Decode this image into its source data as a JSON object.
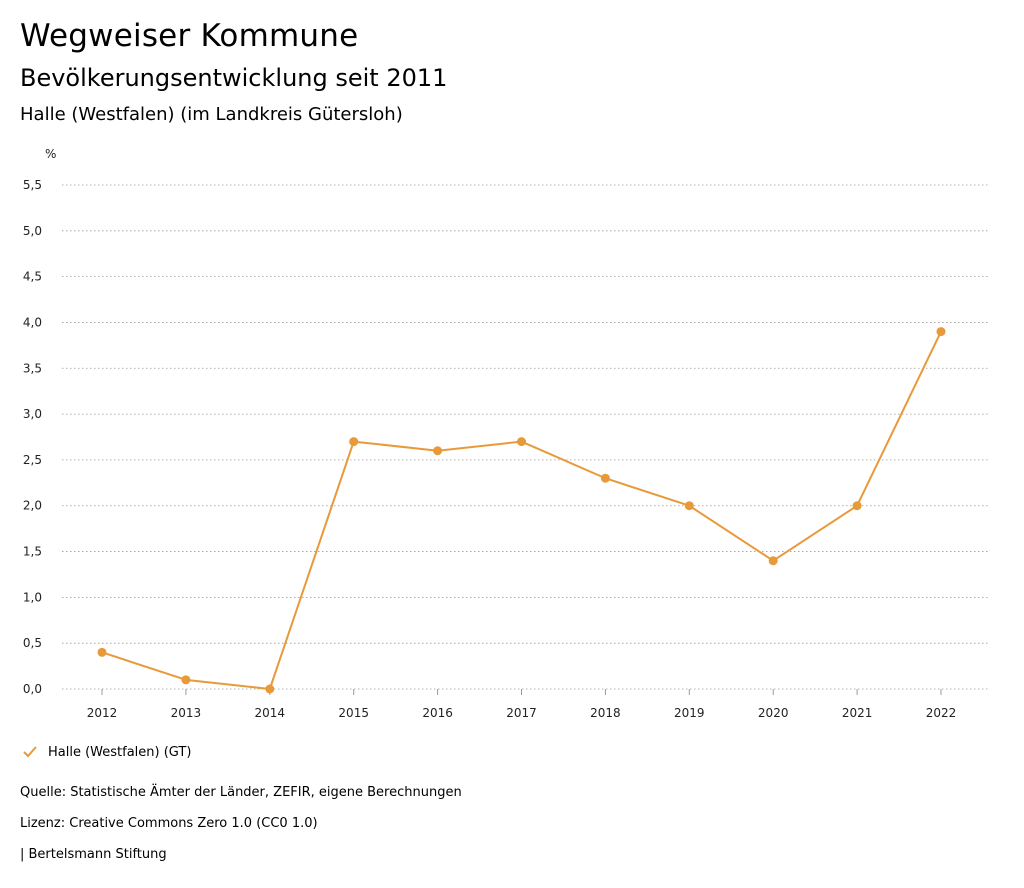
{
  "header": {
    "title": "Wegweiser Kommune",
    "subtitle": "Bevölkerungsentwicklung seit 2011",
    "region": "Halle (Westfalen) (im Landkreis Gütersloh)"
  },
  "chart_data": {
    "type": "line",
    "ylabel": "%",
    "x": [
      "2012",
      "2013",
      "2014",
      "2015",
      "2016",
      "2017",
      "2018",
      "2019",
      "2020",
      "2021",
      "2022"
    ],
    "yticks": [
      "0,0",
      "0,5",
      "1,0",
      "1,5",
      "2,0",
      "2,5",
      "3,0",
      "3,5",
      "4,0",
      "4,5",
      "5,0",
      "5,5"
    ],
    "ylim": [
      0,
      5.5
    ],
    "grid": true,
    "series": [
      {
        "name": "Halle (Westfalen) (GT)",
        "color": "#e8993a",
        "values": [
          0.4,
          0.1,
          0.0,
          2.7,
          2.6,
          2.7,
          2.3,
          2.0,
          1.4,
          2.0,
          3.9
        ]
      }
    ],
    "legend_position": "bottom-left"
  },
  "footer": {
    "source": "Quelle: Statistische Ämter der Länder, ZEFIR, eigene Berechnungen",
    "license": "Lizenz: Creative Commons Zero 1.0 (CC0 1.0)",
    "publisher": "| Bertelsmann Stiftung"
  }
}
